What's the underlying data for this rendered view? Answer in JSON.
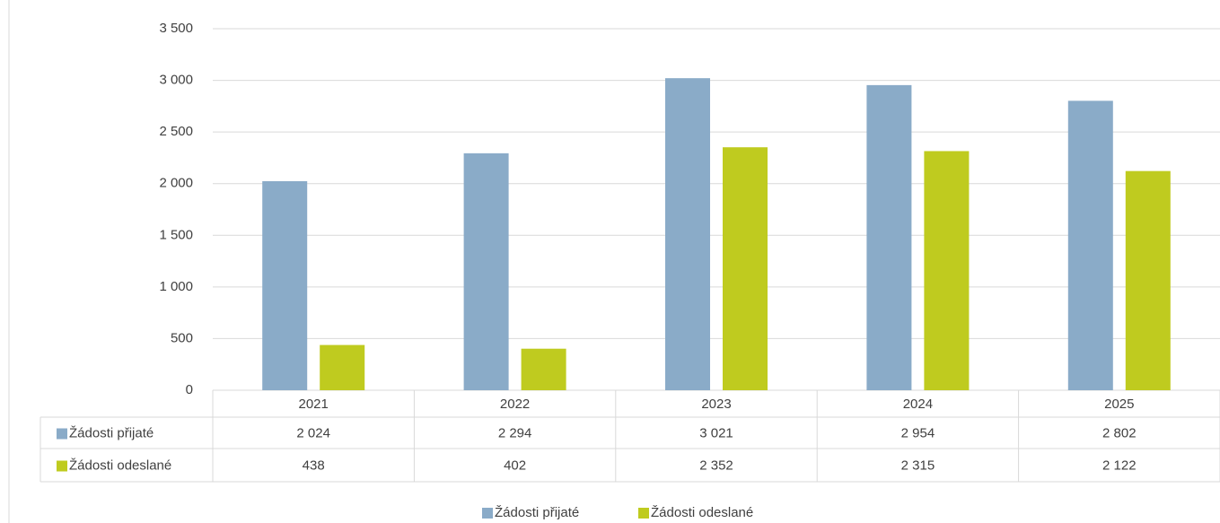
{
  "chart_data": {
    "type": "bar",
    "categories": [
      "2021",
      "2022",
      "2023",
      "2024",
      "2025"
    ],
    "series": [
      {
        "name": "Žádosti přijaté",
        "color": "#8aabc8",
        "values": [
          2024,
          2294,
          3021,
          2954,
          2802
        ],
        "value_labels": [
          "2 024",
          "2 294",
          "3 021",
          "2 954",
          "2 802"
        ]
      },
      {
        "name": "Žádosti odeslané",
        "color": "#bfcb1f",
        "values": [
          438,
          402,
          2352,
          2315,
          2122
        ],
        "value_labels": [
          "438",
          "402",
          "2 352",
          "2 315",
          "2 122"
        ]
      }
    ],
    "ylim": [
      0,
      3500
    ],
    "yticks": [
      0,
      500,
      {
        "value": 1000,
        "label": "1 000"
      },
      {
        "value": 1500,
        "label": "1 500"
      },
      {
        "value": 2000,
        "label": "2 000"
      },
      {
        "value": 2500,
        "label": "2 500"
      },
      {
        "value": 3000,
        "label": "3 000"
      },
      {
        "value": 3500,
        "label": "3 500"
      }
    ],
    "grid": true,
    "legend": "bottom",
    "data_table": true
  }
}
